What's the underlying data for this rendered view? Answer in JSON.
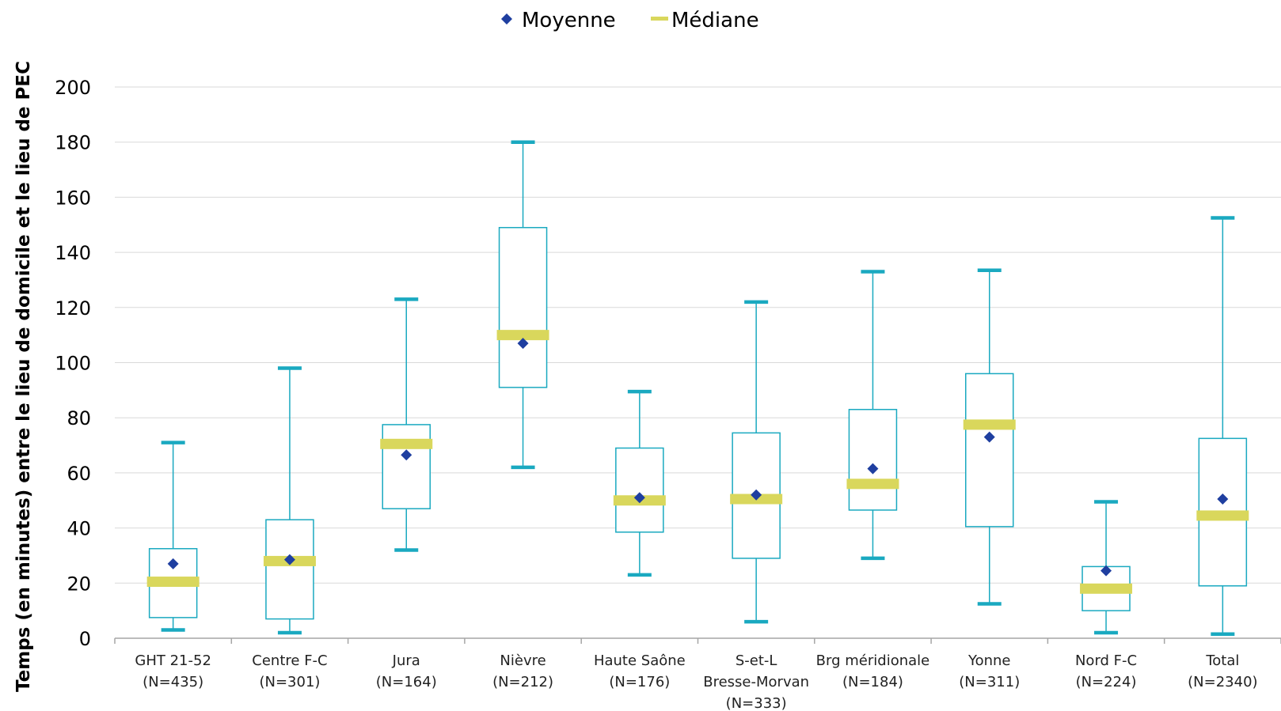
{
  "chart_data": {
    "type": "boxplot",
    "title": "",
    "xlabel": "",
    "ylabel": "Temps (en minutes) entre le lieu de domicile  et le lieu de PEC",
    "ylim": [
      0,
      200
    ],
    "yticks": [
      0,
      20,
      40,
      60,
      80,
      100,
      120,
      140,
      160,
      180,
      200
    ],
    "grid": true,
    "legend": {
      "placement": "top-center",
      "entries": [
        {
          "name": "Moyenne",
          "marker": "diamond",
          "color": "#1f3fa0"
        },
        {
          "name": "Médiane",
          "marker": "bar",
          "color": "#d9d75c"
        }
      ]
    },
    "colors": {
      "box": "#1aa9c0",
      "whisker_cap": "#1aa9c0",
      "median": "#d9d75c",
      "mean": "#1f3fa0",
      "grid": "#d9d9d9",
      "axis": "#a6a6a6"
    },
    "categories": [
      {
        "label": [
          "GHT 21-52",
          "(N=435)"
        ],
        "min": 3,
        "q1": 7.5,
        "median": 20.5,
        "q3": 32.5,
        "max": 71,
        "mean": 27
      },
      {
        "label": [
          "Centre F-C",
          "(N=301)"
        ],
        "min": 2,
        "q1": 7,
        "median": 28,
        "q3": 43,
        "max": 98,
        "mean": 28.5
      },
      {
        "label": [
          "Jura",
          "(N=164)"
        ],
        "min": 32,
        "q1": 47,
        "median": 70.5,
        "q3": 77.5,
        "max": 123,
        "mean": 66.5
      },
      {
        "label": [
          "Nièvre",
          "(N=212)"
        ],
        "min": 62,
        "q1": 91,
        "median": 110,
        "q3": 149,
        "max": 180,
        "mean": 107
      },
      {
        "label": [
          "Haute Saône",
          "(N=176)"
        ],
        "min": 23,
        "q1": 38.5,
        "median": 50,
        "q3": 69,
        "max": 89.5,
        "mean": 51
      },
      {
        "label": [
          "S-et-L",
          "Bresse-Morvan",
          "(N=333)"
        ],
        "min": 6,
        "q1": 29,
        "median": 50.5,
        "q3": 74.5,
        "max": 122,
        "mean": 52
      },
      {
        "label": [
          "Brg méridionale",
          "(N=184)"
        ],
        "min": 29,
        "q1": 46.5,
        "median": 56,
        "q3": 83,
        "max": 133,
        "mean": 61.5
      },
      {
        "label": [
          "Yonne",
          "(N=311)"
        ],
        "min": 12.5,
        "q1": 40.5,
        "median": 77.5,
        "q3": 96,
        "max": 133.5,
        "mean": 73
      },
      {
        "label": [
          "Nord F-C",
          "(N=224)"
        ],
        "min": 2,
        "q1": 10,
        "median": 18,
        "q3": 26,
        "max": 49.5,
        "mean": 24.5
      },
      {
        "label": [
          "Total",
          "(N=2340)"
        ],
        "min": 1.5,
        "q1": 19,
        "median": 44.5,
        "q3": 72.5,
        "max": 152.5,
        "mean": 50.5
      }
    ]
  }
}
